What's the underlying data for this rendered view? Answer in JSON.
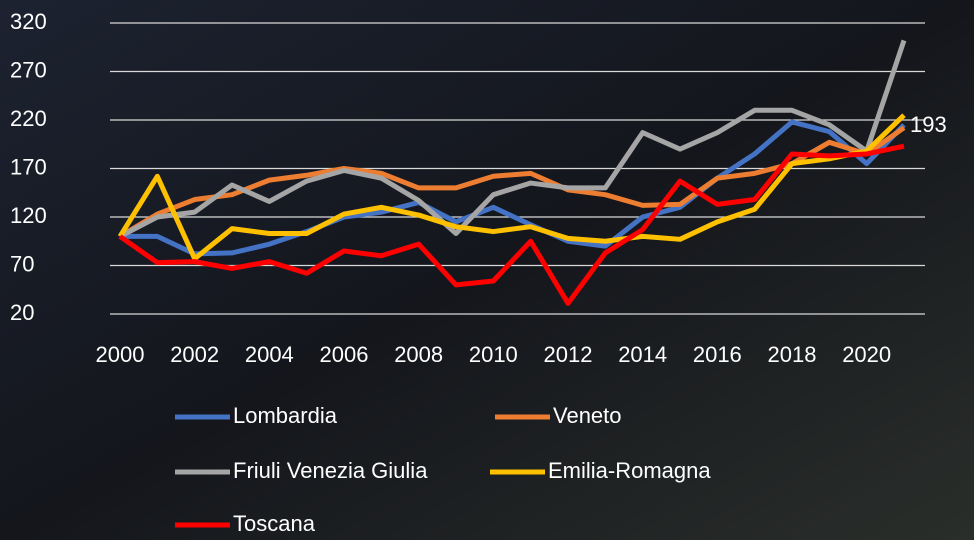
{
  "chart_data": {
    "type": "line",
    "x": [
      2000,
      2001,
      2002,
      2003,
      2004,
      2005,
      2006,
      2007,
      2008,
      2009,
      2010,
      2011,
      2012,
      2013,
      2014,
      2015,
      2016,
      2017,
      2018,
      2019,
      2020,
      2021
    ],
    "xlim": [
      2000,
      2021
    ],
    "xticks": [
      2000,
      2002,
      2004,
      2006,
      2008,
      2010,
      2012,
      2014,
      2016,
      2018,
      2020
    ],
    "ylim": [
      20,
      320
    ],
    "yticks": [
      20,
      70,
      120,
      170,
      220,
      270,
      320
    ],
    "grid": true,
    "legend": "bottom",
    "series": [
      {
        "name": "Lombardia",
        "color": "#4472c4",
        "values": [
          100,
          100,
          82,
          83,
          92,
          105,
          120,
          125,
          135,
          115,
          130,
          112,
          95,
          90,
          120,
          130,
          160,
          185,
          218,
          208,
          175,
          215
        ]
      },
      {
        "name": "Veneto",
        "color": "#ed7d31",
        "values": [
          100,
          123,
          138,
          143,
          158,
          163,
          170,
          165,
          150,
          150,
          162,
          165,
          148,
          143,
          132,
          133,
          160,
          165,
          175,
          197,
          185,
          212
        ]
      },
      {
        "name": "Friuli Venezia Giulia",
        "color": "#a5a5a5",
        "values": [
          100,
          120,
          125,
          153,
          136,
          157,
          168,
          160,
          137,
          103,
          143,
          155,
          150,
          150,
          207,
          190,
          207,
          230,
          230,
          215,
          188,
          302
        ]
      },
      {
        "name": "Emilia-Romagna",
        "color": "#ffc000",
        "values": [
          100,
          162,
          77,
          108,
          103,
          103,
          123,
          130,
          122,
          110,
          105,
          110,
          98,
          95,
          100,
          97,
          115,
          128,
          175,
          180,
          188,
          225
        ]
      },
      {
        "name": "Toscana",
        "color": "#ff0000",
        "values": [
          100,
          73,
          74,
          67,
          74,
          62,
          85,
          80,
          92,
          50,
          54,
          95,
          31,
          83,
          107,
          157,
          133,
          138,
          185,
          183,
          185,
          193
        ]
      }
    ],
    "annotations": [
      {
        "text": "193",
        "series": 4,
        "index": 21
      }
    ]
  }
}
